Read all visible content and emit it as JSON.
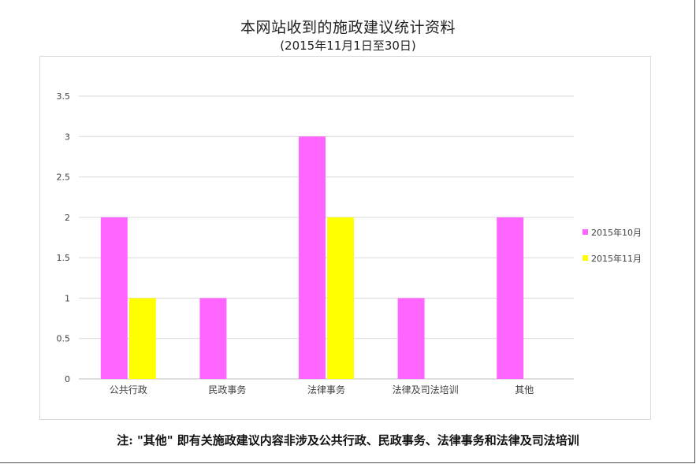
{
  "chart_data": {
    "type": "bar",
    "title": "本网站收到的施政建议统计资料",
    "subtitle": "(2015年11月1日至30日)",
    "categories": [
      "公共行政",
      "民政事务",
      "法律事务",
      "法律及司法培训",
      "其他"
    ],
    "series": [
      {
        "name": "2015年10月",
        "values": [
          2,
          1,
          3,
          1,
          2
        ],
        "color": "#ff66ff"
      },
      {
        "name": "2015年11月",
        "values": [
          1,
          0,
          2,
          0,
          0
        ],
        "color": "#ffff00"
      }
    ],
    "ylim": [
      0,
      3.5
    ],
    "yticks": [
      "0",
      "0.5",
      "1",
      "1.5",
      "2",
      "2.5",
      "3",
      "3.5"
    ],
    "grid": true,
    "legend_position": "right"
  },
  "note": "注: \"其他\" 即有关施政建议内容非涉及公共行政、民政事务、法律事务和法律及司法培训"
}
